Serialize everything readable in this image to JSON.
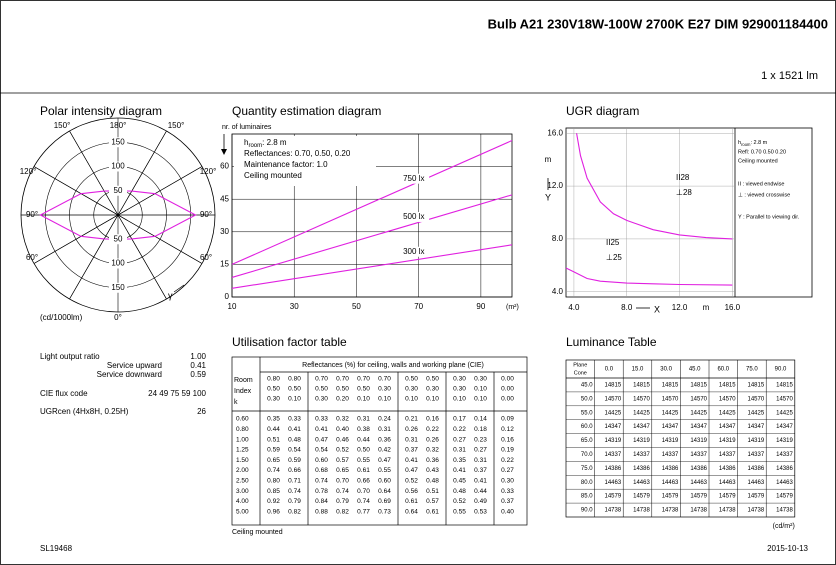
{
  "header": {
    "title": "Bulb A21 230V18W-100W 2700K E27 DIM 929001184400",
    "flux": "1 x 1521 lm"
  },
  "polar": {
    "title": "Polar intensity diagram",
    "labels": [
      "150°",
      "180°",
      "150°",
      "120°",
      "120°",
      "90°",
      "90°",
      "60°",
      "60°",
      "0°"
    ],
    "unit": "(cd/1000lm)",
    "gamma": "γ",
    "rlim": [
      0,
      200
    ],
    "rticks": [
      50,
      100,
      150
    ],
    "curve": {
      "color": "#e020e0",
      "angles": [
        0,
        30,
        60,
        90,
        120,
        150,
        180
      ],
      "values": [
        50,
        57,
        88,
        160,
        88,
        57,
        50
      ]
    }
  },
  "quantity": {
    "title": "Quantity estimation diagram",
    "ylabel": "nr. of luminaires",
    "xunit": "(m²)",
    "xlim": [
      10,
      100
    ],
    "ylim": [
      0,
      75
    ],
    "xticks": [
      10,
      30,
      50,
      70,
      90
    ],
    "yticks": [
      0,
      15,
      30,
      45,
      60
    ],
    "info": [
      {
        "h": "h",
        "sub": "room",
        "rest": ": 2.8 m"
      },
      "Reflectances:  0.70, 0.50, 0.20",
      "Maintenance factor:  1.0",
      "Ceiling mounted"
    ],
    "series": [
      {
        "name": "750 lx",
        "color": "#e020e0",
        "x": [
          10,
          100
        ],
        "values": [
          15,
          72
        ]
      },
      {
        "name": "500 lx",
        "color": "#e020e0",
        "x": [
          10,
          100
        ],
        "values": [
          9,
          47
        ]
      },
      {
        "name": "300 lx",
        "color": "#e020e0",
        "x": [
          10,
          100
        ],
        "values": [
          4,
          24
        ]
      }
    ]
  },
  "ugr": {
    "title": "UGR diagram",
    "xlabel": "X",
    "ylabel": "Y",
    "unit": "m",
    "xlim": [
      3.4,
      16.2
    ],
    "ylim": [
      3.6,
      16.4
    ],
    "xticks": [
      {
        "value": 4,
        "label": "4.0"
      },
      {
        "value": 8,
        "label": "8.0"
      },
      {
        "value": 12,
        "label": "12.0"
      },
      {
        "value": 16,
        "label": "16.0"
      }
    ],
    "yticks": [
      {
        "value": 4,
        "label": "4.0"
      },
      {
        "value": 8,
        "label": "8.0"
      },
      {
        "value": 12,
        "label": "12.0"
      },
      {
        "value": 16,
        "label": "16.0"
      }
    ],
    "annotations": [
      "II28",
      "⊥28",
      "II25",
      "⊥25"
    ],
    "legend": [
      {
        "h": "h",
        "sub": "room",
        "rest": ": 2.8 m"
      },
      "Refl: 0.70 0.50 0.20",
      "Ceiling mounted",
      "II : viewed endwise",
      "⊥ : viewed crosswise",
      "Y   : Parallel to viewing dir."
    ],
    "series": [
      {
        "color": "#e020e0",
        "x": [
          4.2,
          4.5,
          5,
          6,
          7,
          8,
          10,
          12,
          14,
          16
        ],
        "values": [
          16,
          14.3,
          12.6,
          10.8,
          9.9,
          9.4,
          8.7,
          8.3,
          8.1,
          8.0
        ]
      },
      {
        "color": "#e020e0",
        "x": [
          3.4,
          4,
          5,
          6,
          8,
          10,
          12,
          16
        ],
        "values": [
          5.8,
          5.5,
          5.0,
          4.8,
          4.65,
          4.6,
          4.55,
          4.5
        ]
      }
    ]
  },
  "output": [
    {
      "label": "Light output ratio",
      "value": "1.00"
    },
    {
      "label": "Service upward",
      "value": "0.41"
    },
    {
      "label": "Service downward",
      "value": "0.59"
    },
    {
      "label": "CIE flux code",
      "value": "24 49 75 59 100"
    },
    {
      "label": "UGRcen (4Hx8H, 0.25H)",
      "value": "26"
    }
  ],
  "utilisation": {
    "title": "Utilisation factor table",
    "header": "Reflectances (%) for ceiling, walls and working plane (CIE)",
    "room": [
      "Room",
      "Index",
      "k"
    ],
    "groups": [
      [
        [
          "0.80",
          "0.80"
        ],
        [
          "0.50",
          "0.50"
        ],
        [
          "0.30",
          "0.10"
        ]
      ],
      [
        [
          "0.70",
          "0.70",
          "0.70",
          "0.70"
        ],
        [
          "0.50",
          "0.50",
          "0.50",
          "0.30"
        ],
        [
          "0.30",
          "0.20",
          "0.10",
          "0.10"
        ]
      ],
      [
        [
          "0.50",
          "0.50"
        ],
        [
          "0.30",
          "0.30"
        ],
        [
          "0.10",
          "0.10"
        ]
      ],
      [
        [
          "0.30",
          "0.30"
        ],
        [
          "0.30",
          "0.10"
        ],
        [
          "0.10",
          "0.10"
        ]
      ],
      [
        [
          "0.00"
        ],
        [
          "0.00"
        ],
        [
          "0.00"
        ]
      ]
    ],
    "rows": [
      [
        "0.60",
        "0.35",
        "0.33",
        "0.33",
        "0.32",
        "0.31",
        "0.24",
        "0.21",
        "0.16",
        "0.17",
        "0.14",
        "0.09"
      ],
      [
        "0.80",
        "0.44",
        "0.41",
        "0.41",
        "0.40",
        "0.38",
        "0.31",
        "0.26",
        "0.22",
        "0.22",
        "0.18",
        "0.12"
      ],
      [
        "1.00",
        "0.51",
        "0.48",
        "0.47",
        "0.46",
        "0.44",
        "0.36",
        "0.31",
        "0.26",
        "0.27",
        "0.23",
        "0.16"
      ],
      [
        "1.25",
        "0.59",
        "0.54",
        "0.54",
        "0.52",
        "0.50",
        "0.42",
        "0.37",
        "0.32",
        "0.31",
        "0.27",
        "0.19"
      ],
      [
        "1.50",
        "0.65",
        "0.59",
        "0.60",
        "0.57",
        "0.55",
        "0.47",
        "0.41",
        "0.36",
        "0.35",
        "0.31",
        "0.22"
      ],
      [
        "2.00",
        "0.74",
        "0.66",
        "0.68",
        "0.65",
        "0.61",
        "0.55",
        "0.47",
        "0.43",
        "0.41",
        "0.37",
        "0.27"
      ],
      [
        "2.50",
        "0.80",
        "0.71",
        "0.74",
        "0.70",
        "0.66",
        "0.60",
        "0.52",
        "0.48",
        "0.45",
        "0.41",
        "0.30"
      ],
      [
        "3.00",
        "0.85",
        "0.74",
        "0.78",
        "0.74",
        "0.70",
        "0.64",
        "0.56",
        "0.51",
        "0.48",
        "0.44",
        "0.33"
      ],
      [
        "4.00",
        "0.92",
        "0.79",
        "0.84",
        "0.79",
        "0.74",
        "0.69",
        "0.61",
        "0.57",
        "0.52",
        "0.49",
        "0.37"
      ],
      [
        "5.00",
        "0.96",
        "0.82",
        "0.88",
        "0.82",
        "0.77",
        "0.73",
        "0.64",
        "0.61",
        "0.55",
        "0.53",
        "0.40"
      ]
    ],
    "note": "Ceiling mounted"
  },
  "luminance": {
    "title": "Luminance Table",
    "corner": [
      "Plane",
      "Cone"
    ],
    "columns": [
      "0.0",
      "15.0",
      "30.0",
      "45.0",
      "60.0",
      "75.0",
      "90.0"
    ],
    "rows": [
      [
        "45.0",
        "14815",
        "14815",
        "14815",
        "14815",
        "14815",
        "14815",
        "14815"
      ],
      [
        "50.0",
        "14570",
        "14570",
        "14570",
        "14570",
        "14570",
        "14570",
        "14570"
      ],
      [
        "55.0",
        "14425",
        "14425",
        "14425",
        "14425",
        "14425",
        "14425",
        "14425"
      ],
      [
        "60.0",
        "14347",
        "14347",
        "14347",
        "14347",
        "14347",
        "14347",
        "14347"
      ],
      [
        "65.0",
        "14319",
        "14319",
        "14319",
        "14319",
        "14319",
        "14319",
        "14319"
      ],
      [
        "70.0",
        "14337",
        "14337",
        "14337",
        "14337",
        "14337",
        "14337",
        "14337"
      ],
      [
        "75.0",
        "14386",
        "14386",
        "14386",
        "14386",
        "14386",
        "14386",
        "14386"
      ],
      [
        "80.0",
        "14463",
        "14463",
        "14463",
        "14463",
        "14463",
        "14463",
        "14463"
      ],
      [
        "85.0",
        "14579",
        "14579",
        "14579",
        "14579",
        "14579",
        "14579",
        "14579"
      ],
      [
        "90.0",
        "14738",
        "14738",
        "14738",
        "14738",
        "14738",
        "14738",
        "14738"
      ]
    ],
    "unit": "(cd/m²)"
  },
  "footer": {
    "left": "SL19468",
    "right": "2015-10-13"
  }
}
